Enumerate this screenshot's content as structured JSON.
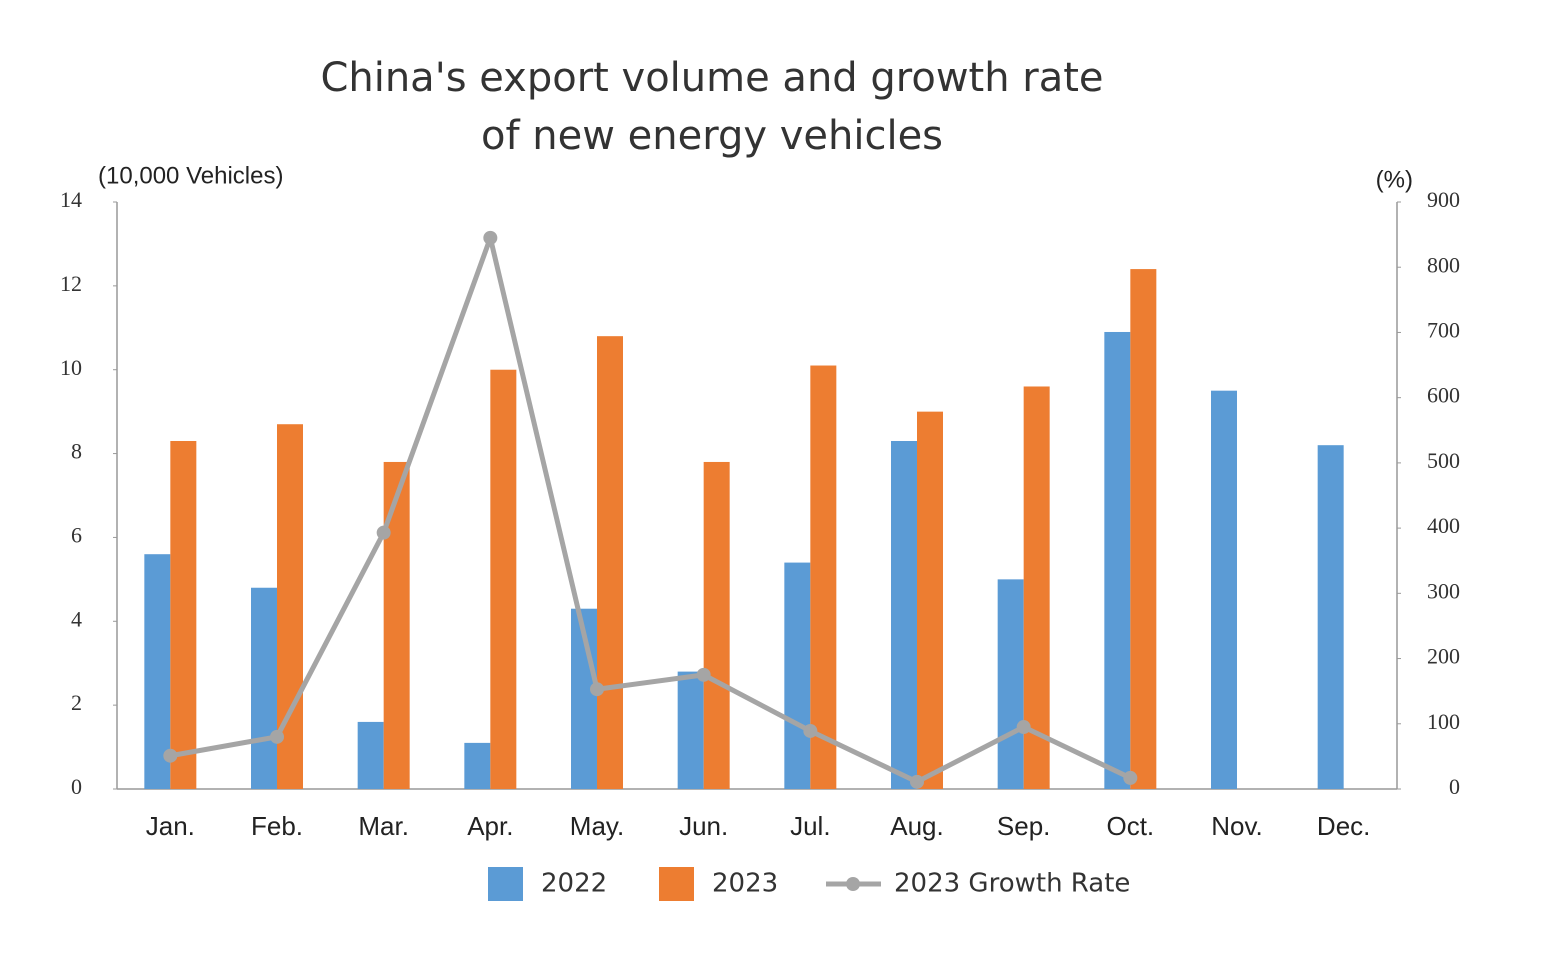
{
  "chart_data": {
    "type": "bar_line",
    "title": [
      "China's export volume and growth rate",
      "of new energy vehicles"
    ],
    "y_label": "(10,000 Vehicles)",
    "y2_label": "(%)",
    "categories": [
      "Jan.",
      "Feb.",
      "Mar.",
      "Apr.",
      "May.",
      "Jun.",
      "Jul.",
      "Aug.",
      "Sep.",
      "Oct.",
      "Nov.",
      "Dec."
    ],
    "series": [
      {
        "name": "2022",
        "type": "bar",
        "color": "#5b9bd5",
        "values": [
          5.6,
          4.8,
          1.6,
          1.1,
          4.3,
          2.8,
          5.4,
          8.3,
          5.0,
          10.9,
          9.5,
          8.2
        ]
      },
      {
        "name": "2023",
        "type": "bar",
        "color": "#ed7d31",
        "values": [
          8.3,
          8.7,
          7.8,
          10.0,
          10.8,
          7.8,
          10.1,
          9.0,
          9.6,
          12.4,
          null,
          null
        ]
      },
      {
        "name": "2023 Growth Rate",
        "type": "line",
        "axis": "y2",
        "color": "#a5a5a5",
        "values": [
          51,
          80,
          393,
          845,
          153,
          175,
          89,
          11,
          95,
          17,
          null,
          null
        ]
      }
    ],
    "ylim": [
      0,
      14
    ],
    "yticks": [
      0,
      2,
      4,
      6,
      8,
      10,
      12,
      14
    ],
    "y2lim": [
      0,
      900
    ],
    "y2ticks": [
      0,
      100,
      200,
      300,
      400,
      500,
      600,
      700,
      800,
      900
    ],
    "grid": false,
    "legend": "bottom"
  }
}
